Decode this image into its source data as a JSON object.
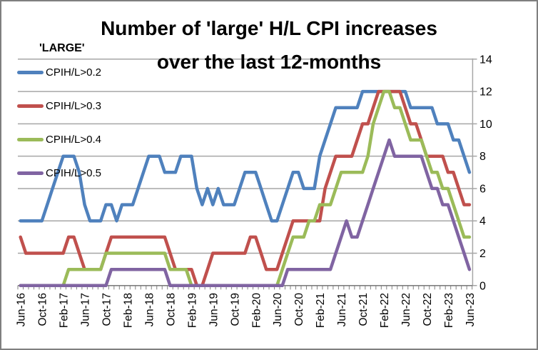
{
  "title": {
    "line1": "Number of 'large' H/L CPI increases",
    "line2": "over the last 12-months"
  },
  "legend": {
    "header": "'LARGE'",
    "items": [
      {
        "label": "CPIH/L>0.2",
        "color": "#4F81BD"
      },
      {
        "label": "CPIH/L>0.3",
        "color": "#C0504D"
      },
      {
        "label": "CPIH/L>0.4",
        "color": "#9BBB59"
      },
      {
        "label": "CPIH/L>0.5",
        "color": "#8064A2"
      }
    ]
  },
  "chart_data": {
    "type": "line",
    "title": "Number of 'large' H/L CPI increases over the last 12-months",
    "xlabel": "",
    "ylabel": "",
    "ylim": [
      0,
      14
    ],
    "y_ticks": [
      0,
      2,
      4,
      6,
      8,
      10,
      12,
      14
    ],
    "y_axis_side": "right",
    "grid": "horizontal",
    "legend_position": "top-left",
    "x_tick_interval": 4,
    "x_tick_labels": [
      "Jun-16",
      "Oct-16",
      "Feb-17",
      "Jun-17",
      "Oct-17",
      "Feb-18",
      "Jun-18",
      "Oct-18",
      "Feb-19",
      "Jun-19",
      "Oct-19",
      "Feb-20",
      "Jun-20",
      "Oct-20",
      "Feb-21",
      "Jun-21",
      "Oct-21",
      "Feb-22",
      "Jun-22",
      "Oct-22",
      "Feb-23",
      "Jun-23"
    ],
    "categories": [
      "Jun-16",
      "Jul-16",
      "Aug-16",
      "Sep-16",
      "Oct-16",
      "Nov-16",
      "Dec-16",
      "Jan-17",
      "Feb-17",
      "Mar-17",
      "Apr-17",
      "May-17",
      "Jun-17",
      "Jul-17",
      "Aug-17",
      "Sep-17",
      "Oct-17",
      "Nov-17",
      "Dec-17",
      "Jan-18",
      "Feb-18",
      "Mar-18",
      "Apr-18",
      "May-18",
      "Jun-18",
      "Jul-18",
      "Aug-18",
      "Sep-18",
      "Oct-18",
      "Nov-18",
      "Dec-18",
      "Jan-19",
      "Feb-19",
      "Mar-19",
      "Apr-19",
      "May-19",
      "Jun-19",
      "Jul-19",
      "Aug-19",
      "Sep-19",
      "Oct-19",
      "Nov-19",
      "Dec-19",
      "Jan-20",
      "Feb-20",
      "Mar-20",
      "Apr-20",
      "May-20",
      "Jun-20",
      "Jul-20",
      "Aug-20",
      "Sep-20",
      "Oct-20",
      "Nov-20",
      "Dec-20",
      "Jan-21",
      "Feb-21",
      "Mar-21",
      "Apr-21",
      "May-21",
      "Jun-21",
      "Jul-21",
      "Aug-21",
      "Sep-21",
      "Oct-21",
      "Nov-21",
      "Dec-21",
      "Jan-22",
      "Feb-22",
      "Mar-22",
      "Apr-22",
      "May-22",
      "Jun-22",
      "Jul-22",
      "Aug-22",
      "Sep-22",
      "Oct-22",
      "Nov-22",
      "Dec-22",
      "Jan-23",
      "Feb-23",
      "Mar-23",
      "Apr-23",
      "May-23",
      "Jun-23"
    ],
    "series": [
      {
        "name": "CPIH/L>0.2",
        "color": "#4F81BD",
        "values": [
          4,
          4,
          4,
          4,
          4,
          5,
          6,
          7,
          8,
          8,
          8,
          7,
          5,
          4,
          4,
          4,
          5,
          5,
          4,
          5,
          5,
          5,
          6,
          7,
          8,
          8,
          8,
          7,
          7,
          7,
          8,
          8,
          8,
          6,
          5,
          6,
          5,
          6,
          5,
          5,
          5,
          6,
          7,
          7,
          7,
          6,
          5,
          4,
          4,
          5,
          6,
          7,
          7,
          6,
          6,
          6,
          8,
          9,
          10,
          11,
          11,
          11,
          11,
          11,
          12,
          12,
          12,
          12,
          12,
          12,
          12,
          12,
          12,
          11,
          11,
          11,
          11,
          11,
          10,
          10,
          10,
          9,
          9,
          8,
          7
        ]
      },
      {
        "name": "CPIH/L>0.3",
        "color": "#C0504D",
        "values": [
          3,
          2,
          2,
          2,
          2,
          2,
          2,
          2,
          2,
          3,
          3,
          2,
          1,
          1,
          1,
          1,
          2,
          3,
          3,
          3,
          3,
          3,
          3,
          3,
          3,
          3,
          3,
          3,
          2,
          1,
          1,
          1,
          1,
          0,
          0,
          1,
          2,
          2,
          2,
          2,
          2,
          2,
          2,
          3,
          3,
          2,
          1,
          1,
          1,
          2,
          3,
          4,
          4,
          4,
          4,
          4,
          4,
          6,
          7,
          8,
          8,
          8,
          8,
          9,
          10,
          10,
          11,
          12,
          12,
          12,
          12,
          12,
          11,
          10,
          10,
          9,
          8,
          8,
          8,
          8,
          7,
          7,
          6,
          5,
          5
        ]
      },
      {
        "name": "CPIH/L>0.4",
        "color": "#9BBB59",
        "values": [
          0,
          0,
          0,
          0,
          0,
          0,
          0,
          0,
          0,
          1,
          1,
          1,
          1,
          1,
          1,
          1,
          2,
          2,
          2,
          2,
          2,
          2,
          2,
          2,
          2,
          2,
          2,
          2,
          1,
          1,
          1,
          1,
          0,
          0,
          0,
          0,
          0,
          0,
          0,
          0,
          0,
          0,
          0,
          0,
          0,
          0,
          0,
          0,
          0,
          1,
          2,
          3,
          3,
          3,
          4,
          4,
          5,
          5,
          5,
          6,
          7,
          7,
          7,
          7,
          7,
          8,
          10,
          11,
          12,
          12,
          11,
          11,
          10,
          9,
          9,
          9,
          8,
          7,
          7,
          6,
          6,
          5,
          4,
          3,
          3
        ]
      },
      {
        "name": "CPIH/L>0.5",
        "color": "#8064A2",
        "values": [
          0,
          0,
          0,
          0,
          0,
          0,
          0,
          0,
          0,
          0,
          0,
          0,
          0,
          0,
          0,
          0,
          0,
          1,
          1,
          1,
          1,
          1,
          1,
          1,
          1,
          1,
          1,
          1,
          0,
          0,
          0,
          0,
          0,
          0,
          0,
          0,
          0,
          0,
          0,
          0,
          0,
          0,
          0,
          0,
          0,
          0,
          0,
          0,
          0,
          0,
          1,
          1,
          1,
          1,
          1,
          1,
          1,
          1,
          1,
          2,
          3,
          4,
          3,
          3,
          4,
          5,
          6,
          7,
          8,
          9,
          8,
          8,
          8,
          8,
          8,
          8,
          7,
          6,
          6,
          5,
          5,
          4,
          3,
          2,
          1
        ]
      }
    ],
    "axis_colors": {
      "gridline": "#A6A6A6",
      "axis_line": "#808080",
      "tick": "#808080",
      "label": "#000000"
    }
  }
}
